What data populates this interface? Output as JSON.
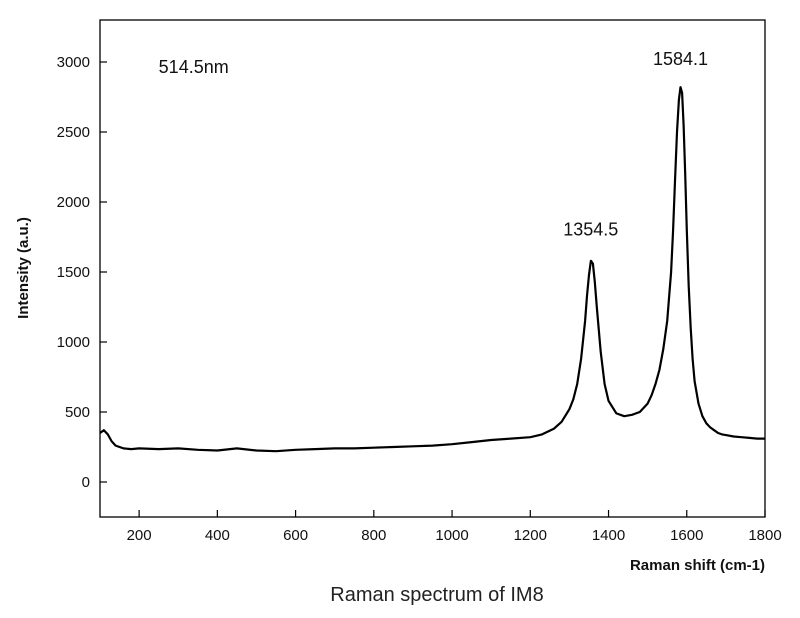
{
  "chart_data": {
    "type": "line",
    "caption": "Raman spectrum of IM8",
    "xlabel": "Raman shift (cm-1)",
    "ylabel": "Intensity (a.u.)",
    "xlim": [
      100,
      1800
    ],
    "ylim": [
      -250,
      3300
    ],
    "xticks": [
      200,
      400,
      600,
      800,
      1000,
      1200,
      1400,
      1600,
      1800
    ],
    "yticks": [
      0,
      500,
      1000,
      1500,
      2000,
      2500,
      3000
    ],
    "grid": false,
    "annotations": [
      {
        "text": "514.5nm",
        "x": 250,
        "y": 2920
      },
      {
        "text": "1354.5",
        "x": 1354.5,
        "y": 1760
      },
      {
        "text": "1584.1",
        "x": 1584.1,
        "y": 2980
      }
    ],
    "series": [
      {
        "color": "#000000",
        "x": [
          100,
          110,
          120,
          130,
          140,
          160,
          180,
          200,
          250,
          300,
          350,
          400,
          450,
          500,
          550,
          600,
          650,
          700,
          750,
          800,
          850,
          900,
          950,
          1000,
          1050,
          1100,
          1150,
          1200,
          1230,
          1260,
          1280,
          1300,
          1310,
          1320,
          1330,
          1340,
          1345,
          1350,
          1355,
          1360,
          1365,
          1370,
          1380,
          1390,
          1400,
          1420,
          1440,
          1460,
          1480,
          1500,
          1510,
          1520,
          1530,
          1540,
          1550,
          1560,
          1565,
          1570,
          1575,
          1580,
          1584,
          1588,
          1592,
          1596,
          1600,
          1605,
          1610,
          1615,
          1620,
          1630,
          1640,
          1650,
          1660,
          1670,
          1680,
          1690,
          1700,
          1720,
          1740,
          1760,
          1780,
          1800
        ],
        "y": [
          350,
          370,
          340,
          290,
          260,
          240,
          235,
          240,
          235,
          240,
          230,
          225,
          240,
          225,
          220,
          230,
          235,
          240,
          240,
          245,
          250,
          255,
          260,
          270,
          285,
          300,
          310,
          320,
          340,
          380,
          430,
          520,
          590,
          700,
          880,
          1150,
          1330,
          1480,
          1580,
          1560,
          1430,
          1250,
          930,
          700,
          580,
          490,
          470,
          480,
          500,
          560,
          620,
          700,
          800,
          950,
          1150,
          1500,
          1800,
          2150,
          2500,
          2730,
          2820,
          2780,
          2550,
          2200,
          1800,
          1400,
          1100,
          880,
          720,
          560,
          470,
          420,
          390,
          370,
          350,
          340,
          335,
          325,
          320,
          315,
          310,
          310
        ]
      }
    ]
  }
}
